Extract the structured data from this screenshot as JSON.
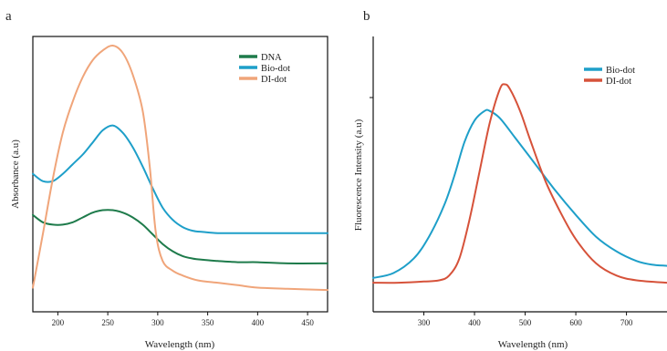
{
  "chart_data": [
    {
      "panel": "a",
      "type": "line",
      "xlabel": "Wavelength (nm)",
      "ylabel": "Absorbance (a.u)",
      "xlim": [
        175,
        470
      ],
      "ylim": [
        0,
        1.1
      ],
      "x_ticks": [
        200,
        250,
        300,
        350,
        400,
        450
      ],
      "x_tick_labels": [
        "200",
        "250",
        "300",
        "350",
        "400",
        "450"
      ],
      "grid": false,
      "legend_position": "top-right",
      "series": [
        {
          "name": "DNA",
          "color": "#1e7b4b",
          "x": [
            175,
            185,
            195,
            205,
            215,
            225,
            235,
            245,
            255,
            265,
            275,
            285,
            295,
            305,
            315,
            325,
            335,
            345,
            360,
            380,
            400,
            430,
            470
          ],
          "y": [
            0.4,
            0.37,
            0.36,
            0.36,
            0.37,
            0.39,
            0.41,
            0.42,
            0.42,
            0.41,
            0.39,
            0.36,
            0.32,
            0.28,
            0.25,
            0.23,
            0.22,
            0.215,
            0.21,
            0.205,
            0.205,
            0.2,
            0.2
          ]
        },
        {
          "name": "Bio-dot",
          "color": "#1e9fc9",
          "x": [
            175,
            185,
            195,
            205,
            215,
            225,
            235,
            245,
            255,
            265,
            275,
            285,
            295,
            305,
            315,
            325,
            335,
            345,
            360,
            380,
            400,
            430,
            470
          ],
          "y": [
            0.57,
            0.54,
            0.54,
            0.57,
            0.61,
            0.65,
            0.7,
            0.75,
            0.77,
            0.74,
            0.68,
            0.6,
            0.51,
            0.43,
            0.38,
            0.35,
            0.335,
            0.33,
            0.325,
            0.325,
            0.325,
            0.325,
            0.325
          ]
        },
        {
          "name": "DI-dot",
          "color": "#f0a57a",
          "x": [
            175,
            185,
            195,
            205,
            215,
            225,
            235,
            245,
            255,
            265,
            275,
            285,
            292,
            298,
            305,
            315,
            325,
            340,
            360,
            380,
            400,
            430,
            470
          ],
          "y": [
            0.1,
            0.32,
            0.55,
            0.74,
            0.87,
            0.97,
            1.04,
            1.08,
            1.1,
            1.07,
            0.98,
            0.83,
            0.6,
            0.33,
            0.21,
            0.17,
            0.15,
            0.13,
            0.12,
            0.11,
            0.1,
            0.095,
            0.09
          ]
        }
      ]
    },
    {
      "panel": "b",
      "type": "line",
      "xlabel": "Wavelength (nm)",
      "ylabel": "Fluorescence Intensity (a.u)",
      "xlim": [
        200,
        780
      ],
      "ylim": [
        0,
        1.1
      ],
      "x_ticks": [
        300,
        400,
        500,
        600,
        700
      ],
      "x_tick_labels": [
        "300",
        "400",
        "500",
        "600",
        "700"
      ],
      "grid": false,
      "legend_position": "top-right",
      "series": [
        {
          "name": "Bio-dot",
          "color": "#1e9fc9",
          "x": [
            200,
            240,
            280,
            310,
            340,
            360,
            380,
            400,
            420,
            430,
            450,
            480,
            520,
            560,
            600,
            640,
            680,
            720,
            750,
            780
          ],
          "y": [
            0.14,
            0.16,
            0.22,
            0.31,
            0.44,
            0.56,
            0.7,
            0.79,
            0.83,
            0.83,
            0.8,
            0.72,
            0.61,
            0.5,
            0.4,
            0.31,
            0.25,
            0.21,
            0.195,
            0.19
          ]
        },
        {
          "name": "DI-dot",
          "color": "#d6523a",
          "x": [
            200,
            250,
            300,
            330,
            350,
            370,
            390,
            410,
            430,
            450,
            460,
            470,
            490,
            510,
            540,
            570,
            600,
            640,
            680,
            720,
            780
          ],
          "y": [
            0.12,
            0.12,
            0.125,
            0.13,
            0.15,
            0.22,
            0.38,
            0.58,
            0.78,
            0.92,
            0.94,
            0.92,
            0.83,
            0.71,
            0.54,
            0.41,
            0.3,
            0.2,
            0.15,
            0.13,
            0.12
          ]
        }
      ]
    }
  ]
}
